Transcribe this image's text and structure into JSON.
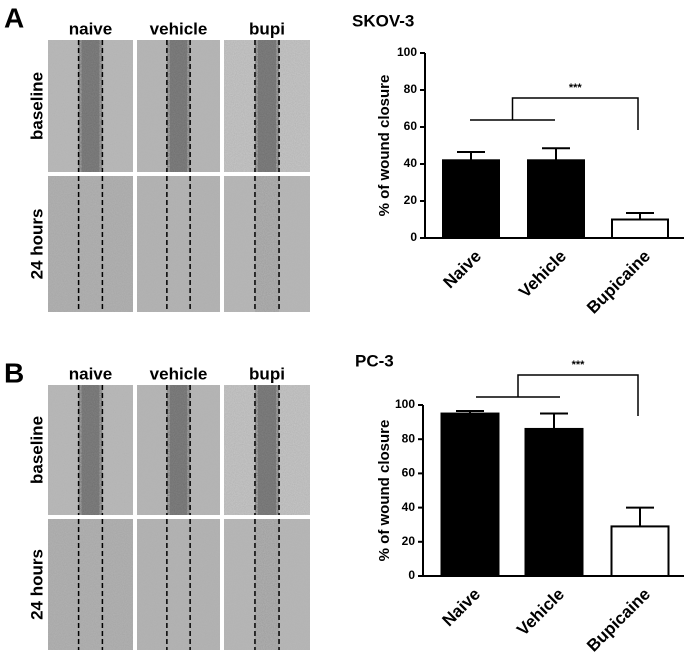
{
  "panels": [
    {
      "label": "A",
      "columns": [
        "naive",
        "vehicle",
        "bupi"
      ],
      "rows": [
        "baseline",
        "24 hours"
      ]
    },
    {
      "label": "B",
      "columns": [
        "naive",
        "vehicle",
        "bupi"
      ],
      "rows": [
        "baseline",
        "24 hours"
      ]
    }
  ],
  "chart_data": [
    {
      "type": "bar",
      "title": "SKOV-3",
      "ylabel": "% of wound closure",
      "categories": [
        "Naive",
        "Vehicle",
        "Bupicaine"
      ],
      "values": [
        42,
        42,
        10
      ],
      "errors": [
        4.5,
        6.5,
        3.5
      ],
      "colors": [
        "#000000",
        "#000000",
        "#ffffff"
      ],
      "ylim": [
        0,
        100
      ],
      "yticks": [
        0,
        20,
        40,
        60,
        80,
        100
      ],
      "annotation": "***"
    },
    {
      "type": "bar",
      "title": "PC-3",
      "ylabel": "% of wound closure",
      "categories": [
        "Naive",
        "Vehicle",
        "Bupicaine"
      ],
      "values": [
        95,
        86,
        29
      ],
      "errors": [
        1.5,
        9,
        11
      ],
      "colors": [
        "#000000",
        "#000000",
        "#ffffff"
      ],
      "ylim": [
        0,
        100
      ],
      "yticks": [
        0,
        20,
        40,
        60,
        80,
        100
      ],
      "annotation": "***"
    }
  ]
}
